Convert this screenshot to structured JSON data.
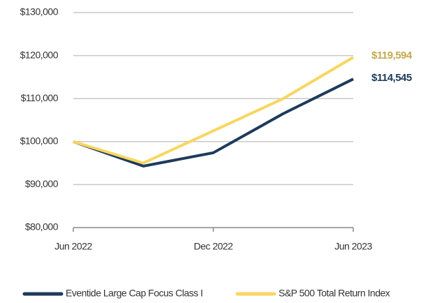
{
  "chart_data": {
    "type": "line",
    "categories": [
      "Jun 2022",
      null,
      "Dec 2022",
      null,
      "Jun 2023"
    ],
    "series": [
      {
        "name": "Eventide Large Cap Focus Class I",
        "color": "#1e3a5c",
        "label_color": "#1e3a5c",
        "values": [
          100000,
          94300,
          97400,
          106500,
          114545
        ],
        "value_labels": [
          null,
          null,
          null,
          null,
          "$114,545"
        ]
      },
      {
        "name": "S&P 500 Total Return Index",
        "color": "#f8d660",
        "label_color": "#c5a84f",
        "values": [
          100000,
          95000,
          102500,
          110000,
          119594
        ],
        "value_labels": [
          null,
          null,
          null,
          null,
          "$119,594"
        ]
      }
    ],
    "ylim": [
      80000,
      130000
    ],
    "yticks": [
      {
        "value": 80000,
        "label": "$80,000"
      },
      {
        "value": 90000,
        "label": "$90,000"
      },
      {
        "value": 100000,
        "label": "$100,000"
      },
      {
        "value": 110000,
        "label": "$110,000"
      },
      {
        "value": 120000,
        "label": "$120,000"
      },
      {
        "value": 130000,
        "label": "$130,000"
      }
    ],
    "grid": true,
    "legend": "bottom"
  }
}
